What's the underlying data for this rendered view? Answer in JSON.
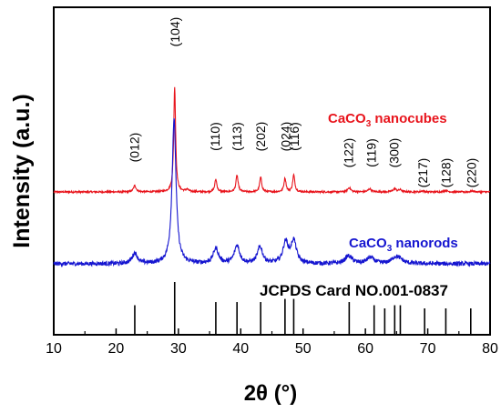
{
  "chart_data": {
    "type": "line",
    "title": "",
    "xlabel": "2θ (°)",
    "ylabel": "Intensity (a.u.)",
    "xlim": [
      10,
      80
    ],
    "xticks": [
      10,
      20,
      30,
      40,
      50,
      60,
      70,
      80
    ],
    "y_ticks_shown": false,
    "grid": false,
    "series": [
      {
        "name": "CaCO₃ nanocubes",
        "label_main": "CaCO",
        "label_sub": "3",
        "label_rest": " nanocubes",
        "color": "#e8141c",
        "baseline": 0.06,
        "noise": 0.008,
        "peaks": [
          {
            "x": 23.0,
            "h": 0.06,
            "w": 0.25
          },
          {
            "x": 29.4,
            "h": 1.0,
            "w": 0.18
          },
          {
            "x": 31.4,
            "h": 0.02,
            "w": 0.3
          },
          {
            "x": 36.0,
            "h": 0.12,
            "w": 0.2
          },
          {
            "x": 39.4,
            "h": 0.16,
            "w": 0.2
          },
          {
            "x": 43.2,
            "h": 0.14,
            "w": 0.2
          },
          {
            "x": 47.1,
            "h": 0.13,
            "w": 0.2
          },
          {
            "x": 48.5,
            "h": 0.16,
            "w": 0.2
          },
          {
            "x": 57.4,
            "h": 0.04,
            "w": 0.3
          },
          {
            "x": 60.7,
            "h": 0.03,
            "w": 0.3
          },
          {
            "x": 64.7,
            "h": 0.03,
            "w": 0.3
          },
          {
            "x": 65.6,
            "h": 0.02,
            "w": 0.3
          },
          {
            "x": 69.2,
            "h": 0.01,
            "w": 0.3
          },
          {
            "x": 72.9,
            "h": 0.015,
            "w": 0.3
          },
          {
            "x": 77.2,
            "h": 0.01,
            "w": 0.3
          }
        ]
      },
      {
        "name": "CaCO₃ nanorods",
        "label_main": "CaCO",
        "label_sub": "3",
        "label_rest": " nanorods",
        "color": "#1515d0",
        "baseline": 0.0,
        "noise": 0.014,
        "peaks": [
          {
            "x": 23.0,
            "h": 0.07,
            "w": 0.5
          },
          {
            "x": 29.3,
            "h": 0.96,
            "w": 0.38
          },
          {
            "x": 36.0,
            "h": 0.1,
            "w": 0.5
          },
          {
            "x": 39.4,
            "h": 0.12,
            "w": 0.5
          },
          {
            "x": 43.1,
            "h": 0.11,
            "w": 0.5
          },
          {
            "x": 47.2,
            "h": 0.14,
            "w": 0.5
          },
          {
            "x": 48.5,
            "h": 0.15,
            "w": 0.5
          },
          {
            "x": 57.3,
            "h": 0.05,
            "w": 0.7
          },
          {
            "x": 60.8,
            "h": 0.04,
            "w": 0.7
          },
          {
            "x": 64.8,
            "h": 0.04,
            "w": 0.7
          },
          {
            "x": 65.6,
            "h": 0.02,
            "w": 0.7
          }
        ]
      }
    ],
    "reference": {
      "name": "JCPDS Card NO.001-0837",
      "color": "#000000",
      "lines": [
        {
          "x": 23.0,
          "h": 0.56
        },
        {
          "x": 29.4,
          "h": 1.0
        },
        {
          "x": 36.0,
          "h": 0.62
        },
        {
          "x": 39.4,
          "h": 0.62
        },
        {
          "x": 43.2,
          "h": 0.62
        },
        {
          "x": 47.1,
          "h": 0.68
        },
        {
          "x": 48.5,
          "h": 0.68
        },
        {
          "x": 57.4,
          "h": 0.62
        },
        {
          "x": 61.4,
          "h": 0.56
        },
        {
          "x": 63.1,
          "h": 0.5
        },
        {
          "x": 64.7,
          "h": 0.56
        },
        {
          "x": 65.6,
          "h": 0.56
        },
        {
          "x": 69.5,
          "h": 0.5
        },
        {
          "x": 72.9,
          "h": 0.5
        },
        {
          "x": 76.9,
          "h": 0.5
        }
      ]
    },
    "peak_labels": [
      {
        "text": "(012)",
        "x": 22.9,
        "level": "low"
      },
      {
        "text": "(104)",
        "x": 29.4,
        "level": "top"
      },
      {
        "text": "(110)",
        "x": 35.9,
        "level": "mid"
      },
      {
        "text": "(113)",
        "x": 39.4,
        "level": "mid"
      },
      {
        "text": "(202)",
        "x": 43.2,
        "level": "mid"
      },
      {
        "text": "(024)",
        "x": 47.2,
        "level": "mid"
      },
      {
        "text": "(116)",
        "x": 48.6,
        "level": "mid"
      },
      {
        "text": "(122)",
        "x": 57.3,
        "level": "lowmid"
      },
      {
        "text": "(119)",
        "x": 60.9,
        "level": "lowmid"
      },
      {
        "text": "(300)",
        "x": 64.6,
        "level": "lowmid"
      },
      {
        "text": "(217)",
        "x": 69.2,
        "level": "low2"
      },
      {
        "text": "(128)",
        "x": 72.9,
        "level": "low2"
      },
      {
        "text": "(220)",
        "x": 77.0,
        "level": "low2"
      }
    ]
  }
}
